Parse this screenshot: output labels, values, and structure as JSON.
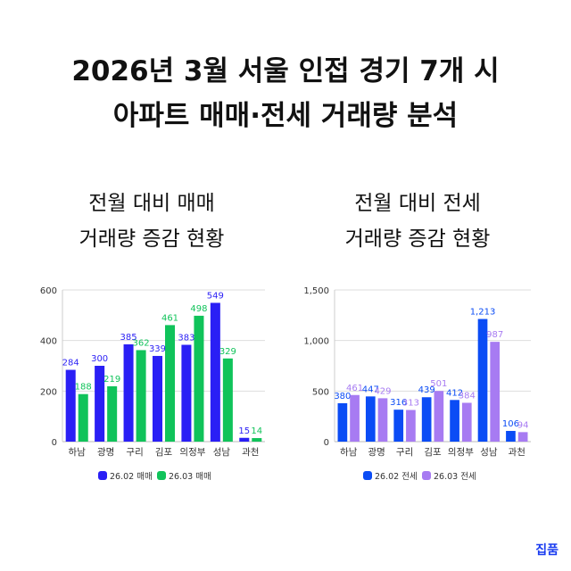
{
  "title_line1": "2026년 3월 서울 인접 경기 7개 시",
  "title_line2": "아파트 매매·전세 거래량 분석",
  "logo": "집품",
  "chart_data": [
    {
      "type": "bar",
      "subtitle_line1": "전월 대비 매매",
      "subtitle_line2": "거래량 증감 현황",
      "categories": [
        "하남",
        "광명",
        "구리",
        "김포",
        "의정부",
        "성남",
        "과천"
      ],
      "ylim": [
        0,
        600
      ],
      "yticks": [
        0,
        200,
        400,
        600
      ],
      "ytick_labels": [
        "0",
        "200",
        "400",
        "600"
      ],
      "grid": true,
      "legend_position": "bottom",
      "series": [
        {
          "name": "26.02 매매",
          "color": "#2a1ff5",
          "values": [
            284,
            300,
            385,
            339,
            383,
            549,
            15
          ],
          "labels": [
            "284",
            "300",
            "385",
            "339",
            "383",
            "549",
            "15"
          ]
        },
        {
          "name": "26.03 매매",
          "color": "#10c35a",
          "values": [
            188,
            219,
            362,
            461,
            498,
            329,
            14
          ],
          "labels": [
            "188",
            "219",
            "362",
            "461",
            "498",
            "329",
            "14"
          ]
        }
      ]
    },
    {
      "type": "bar",
      "subtitle_line1": "전월 대비 전세",
      "subtitle_line2": "거래량 증감 현황",
      "categories": [
        "하남",
        "광명",
        "구리",
        "김포",
        "의정부",
        "성남",
        "과천"
      ],
      "ylim": [
        0,
        1500
      ],
      "yticks": [
        0,
        500,
        1000,
        1500
      ],
      "ytick_labels": [
        "0",
        "500",
        "1,000",
        "1,500"
      ],
      "grid": true,
      "legend_position": "bottom",
      "series": [
        {
          "name": "26.02 전세",
          "color": "#0b4cf5",
          "values": [
            380,
            447,
            316,
            439,
            412,
            1213,
            106
          ],
          "labels": [
            "380",
            "447",
            "316",
            "439",
            "412",
            "1,213",
            "106"
          ]
        },
        {
          "name": "26.03 전세",
          "color": "#a77bf2",
          "values": [
            461,
            429,
            313,
            501,
            384,
            987,
            94
          ],
          "labels": [
            "461",
            "429",
            "313",
            "501",
            "384",
            "987",
            "94"
          ]
        }
      ]
    }
  ]
}
